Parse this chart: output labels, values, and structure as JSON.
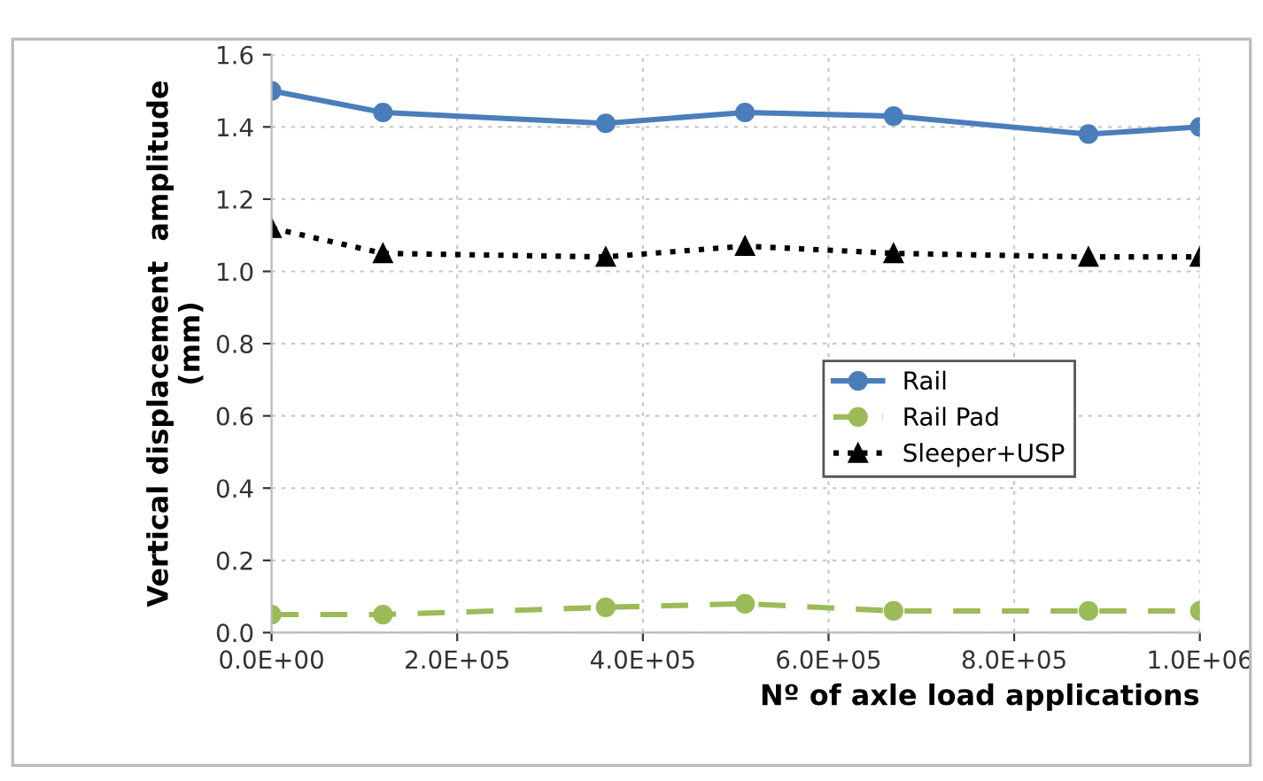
{
  "chart_data": {
    "type": "line",
    "xlabel": "Nº of axle load applications",
    "ylabel": "Vertical displacement  amplitude\n(mm)",
    "x": [
      0,
      120000,
      360000,
      510000,
      670000,
      880000,
      1000000
    ],
    "series": [
      {
        "name": "Rail",
        "color": "#4a7ebb",
        "marker": "circle",
        "line_style": "solid",
        "values": [
          1.5,
          1.44,
          1.41,
          1.44,
          1.43,
          1.38,
          1.4
        ]
      },
      {
        "name": "Rail Pad",
        "color": "#9bbb59",
        "marker": "circle",
        "line_style": "dashed",
        "values": [
          0.05,
          0.05,
          0.07,
          0.08,
          0.06,
          0.06,
          0.06
        ]
      },
      {
        "name": "Sleeper+USP",
        "color": "#000000",
        "marker": "triangle",
        "line_style": "dotted",
        "values": [
          1.12,
          1.05,
          1.04,
          1.07,
          1.05,
          1.04,
          1.04
        ]
      }
    ],
    "xlim": [
      0,
      1000000
    ],
    "xticks": [
      {
        "value": 0,
        "label": "0.0E+00"
      },
      {
        "value": 200000,
        "label": "2.0E+05"
      },
      {
        "value": 400000,
        "label": "4.0E+05"
      },
      {
        "value": 600000,
        "label": "6.0E+05"
      },
      {
        "value": 800000,
        "label": "8.0E+05"
      },
      {
        "value": 1000000,
        "label": "1.0E+06"
      }
    ],
    "ylim": [
      0,
      1.6
    ],
    "yticks": [
      {
        "value": 0,
        "label": "0.0"
      },
      {
        "value": 0.2,
        "label": "0.2"
      },
      {
        "value": 0.4,
        "label": "0.4"
      },
      {
        "value": 0.6,
        "label": "0.6"
      },
      {
        "value": 0.8,
        "label": "0.8"
      },
      {
        "value": 1.0,
        "label": "1.0"
      },
      {
        "value": 1.2,
        "label": "1.2"
      },
      {
        "value": 1.4,
        "label": "1.4"
      },
      {
        "value": 1.6,
        "label": "1.6"
      }
    ],
    "grid": true,
    "legend": "center right"
  }
}
